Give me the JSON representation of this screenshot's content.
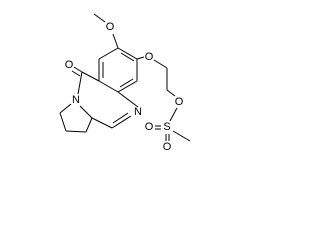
{
  "atoms": [
    {
      "label": "O"
    },
    {
      "label": "O"
    },
    {
      "label": "O"
    },
    {
      "label": "N"
    },
    {
      "label": "N"
    },
    {
      "label": "O"
    },
    {
      "label": "S"
    },
    {
      "label": "O"
    },
    {
      "label": "O"
    }
  ]
}
